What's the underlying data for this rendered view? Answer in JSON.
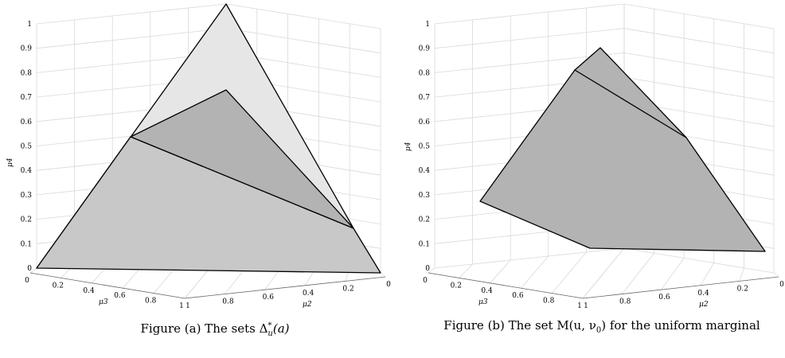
{
  "ticks": {
    "z": [
      "0",
      "0.1",
      "0.2",
      "0.3",
      "0.4",
      "0.5",
      "0.6",
      "0.7",
      "0.8",
      "0.9",
      "1"
    ],
    "mu3": [
      "0",
      "0.2",
      "0.4",
      "0.6",
      "0.8",
      "1"
    ],
    "mu2": [
      "1",
      "0.8",
      "0.6",
      "0.4",
      "0.2",
      "0"
    ]
  },
  "axis_labels": {
    "z": "μ4",
    "mu3": "μ3",
    "mu2": "μ2"
  },
  "colors": {
    "light_fill": "#e6e6e6",
    "dark_fill": "#b3b3b3",
    "fill_a_lower": "#c8c8c8"
  },
  "panels": [
    {
      "id": "a",
      "caption": "Figure (a) The sets Δ*u(a)",
      "caption_parts": {
        "prefix": "Figure (a) The sets ",
        "symbol": "Δ",
        "sup": "*",
        "sub": "u",
        "suffix": "(a)"
      }
    },
    {
      "id": "b",
      "caption": "Figure (b) The set M(u, ν0) for the uniform marginal",
      "caption_parts": {
        "prefix": "Figure (b) The set ",
        "symbol": "M(u, ν",
        "sub": "0",
        "suffix": ") for the uniform marginal"
      }
    }
  ]
}
